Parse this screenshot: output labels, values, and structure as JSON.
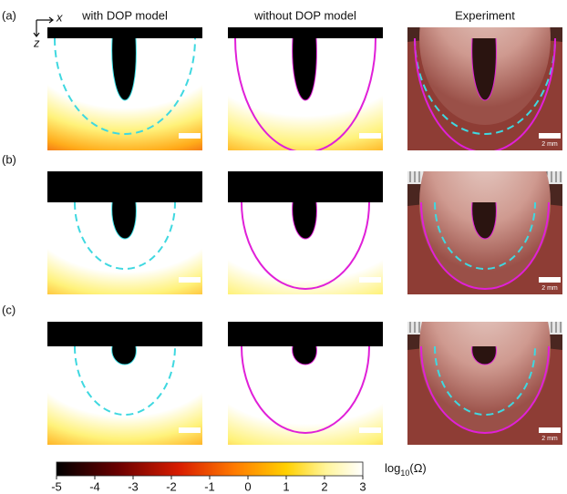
{
  "figure": {
    "column_titles": [
      "with DOP model",
      "without DOP model",
      "Experiment"
    ],
    "row_labels": [
      "(a)",
      "(b)",
      "(c)"
    ],
    "axes": {
      "x": "x",
      "z": "z"
    },
    "scale_bar_labels": [
      "2 mm",
      "2 mm",
      "2 mm"
    ],
    "colorbar": {
      "label": "log",
      "label_subscript": "10",
      "label_suffix": "(Ω)",
      "lim": [
        -5,
        3
      ],
      "ticks": [
        -5,
        -4,
        -3,
        -2,
        -1,
        0,
        1,
        2,
        3
      ]
    }
  }
}
